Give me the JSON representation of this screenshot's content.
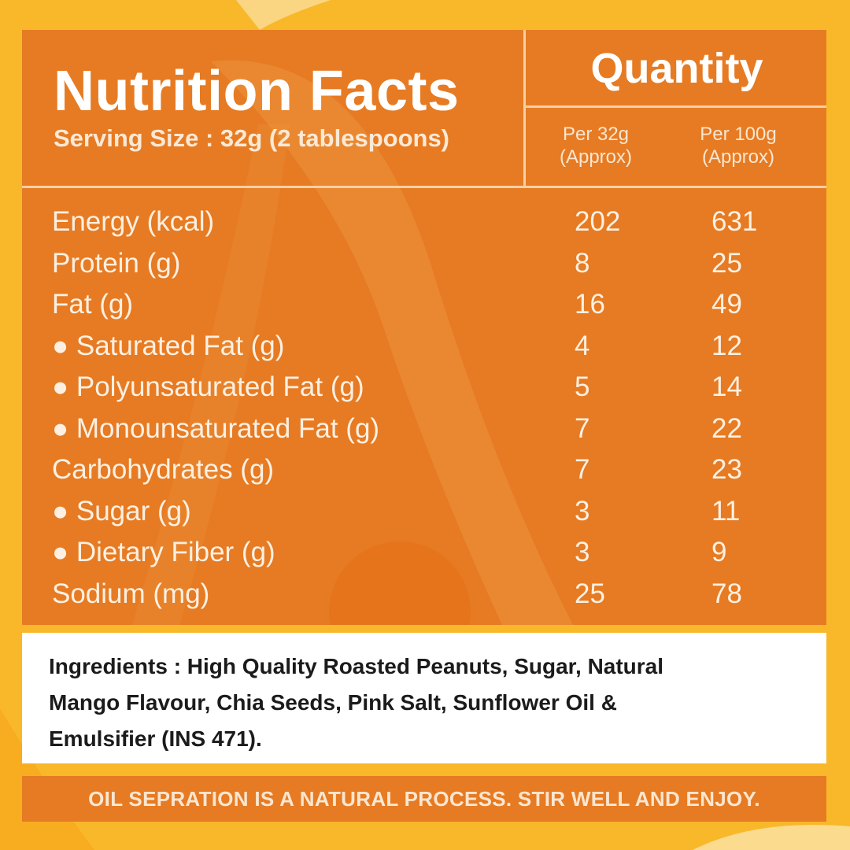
{
  "colors": {
    "background": "#f9b82a",
    "panel": "#e67b23",
    "divider": "#f5d0a5",
    "ingredients_bg": "#ffffff"
  },
  "header": {
    "title": "Nutrition Facts",
    "serving_size": "Serving Size : 32g (2 tablespoons)",
    "quantity_label": "Quantity",
    "columns": [
      {
        "line1": "Per 32g",
        "line2": "(Approx)"
      },
      {
        "line1": "Per 100g",
        "line2": "(Approx)"
      }
    ]
  },
  "nutrients": [
    {
      "label": "Energy (kcal)",
      "per_32g": "202",
      "per_100g": "631"
    },
    {
      "label": "Protein (g)",
      "per_32g": "8",
      "per_100g": "25"
    },
    {
      "label": "Fat (g)",
      "per_32g": "16",
      "per_100g": "49"
    },
    {
      "label": "● Saturated Fat (g)",
      "per_32g": "4",
      "per_100g": "12"
    },
    {
      "label": "● Polyunsaturated Fat (g)",
      "per_32g": "5",
      "per_100g": "14"
    },
    {
      "label": "● Monounsaturated Fat (g)",
      "per_32g": "7",
      "per_100g": "22"
    },
    {
      "label": "Carbohydrates (g)",
      "per_32g": "7",
      "per_100g": "23"
    },
    {
      "label": "● Sugar (g)",
      "per_32g": "3",
      "per_100g": "11"
    },
    {
      "label": "● Dietary Fiber (g)",
      "per_32g": "3",
      "per_100g": "9"
    },
    {
      "label": "Sodium (mg)",
      "per_32g": "25",
      "per_100g": "78"
    }
  ],
  "ingredients": {
    "lines": [
      "Ingredients : High Quality Roasted Peanuts, Sugar, Natural",
      "Mango Flavour, Chia Seeds, Pink Salt, Sunflower Oil &",
      "Emulsifier (INS 471)."
    ]
  },
  "footer": {
    "text": "OIL SEPRATION IS A NATURAL PROCESS. STIR WELL AND ENJOY."
  }
}
